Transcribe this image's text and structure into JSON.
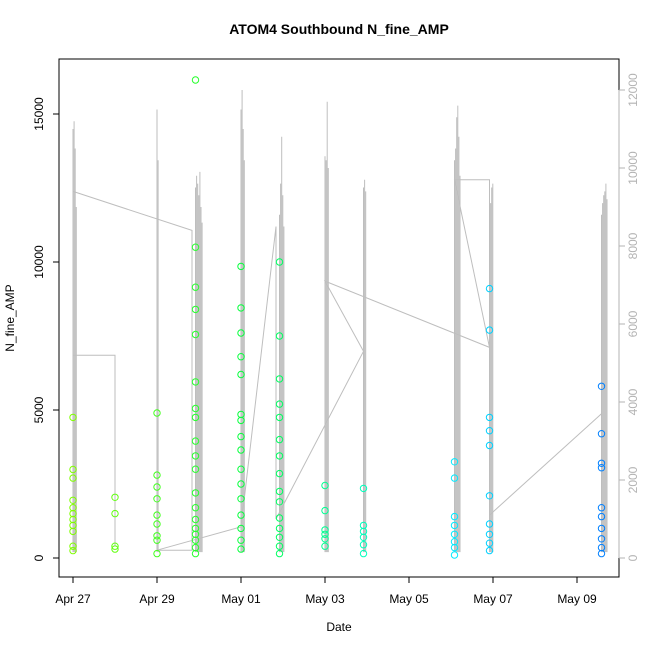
{
  "chart_data": {
    "type": "scatter",
    "title": "ATOM4 Southbound N_fine_AMP",
    "xlabel": "Date",
    "ylabel": "N_fine_AMP",
    "ylim": [
      0,
      16500
    ],
    "y_ticks": [
      0,
      5000,
      10000,
      15000
    ],
    "y2_ticks": [
      0,
      2000,
      4000,
      6000,
      8000,
      10000,
      12000
    ],
    "y2lim": [
      0,
      12500
    ],
    "x_ticks": [
      {
        "date": "2023-04-27",
        "label": "Apr 27"
      },
      {
        "date": "2023-04-29",
        "label": "Apr 29"
      },
      {
        "date": "2023-05-01",
        "label": "May 01"
      },
      {
        "date": "2023-05-03",
        "label": "May 03"
      },
      {
        "date": "2023-05-05",
        "label": "May 05"
      },
      {
        "date": "2023-05-07",
        "label": "May 07"
      },
      {
        "date": "2023-05-09",
        "label": "May 09"
      }
    ],
    "xlim": [
      "2023-04-26 16:00",
      "2023-05-10 00:00"
    ],
    "point_color_gradient": [
      "#80ff00",
      "#00ff40",
      "#00ffff",
      "#0080ff"
    ],
    "grey_line_color": "#bebebe",
    "grid": false,
    "legend": "none",
    "points": [
      {
        "t": "2023-04-27 00:00",
        "y": 4750
      },
      {
        "t": "2023-04-27 00:00",
        "y": 2990
      },
      {
        "t": "2023-04-27 00:00",
        "y": 2700
      },
      {
        "t": "2023-04-27 00:00",
        "y": 1950
      },
      {
        "t": "2023-04-27 00:00",
        "y": 1700
      },
      {
        "t": "2023-04-27 00:00",
        "y": 1500
      },
      {
        "t": "2023-04-27 00:00",
        "y": 1300
      },
      {
        "t": "2023-04-27 00:00",
        "y": 1100
      },
      {
        "t": "2023-04-27 00:00",
        "y": 900
      },
      {
        "t": "2023-04-27 00:00",
        "y": 400
      },
      {
        "t": "2023-04-27 00:00",
        "y": 250
      },
      {
        "t": "2023-04-28 00:00",
        "y": 2050
      },
      {
        "t": "2023-04-28 00:00",
        "y": 1500
      },
      {
        "t": "2023-04-28 00:00",
        "y": 400
      },
      {
        "t": "2023-04-28 00:00",
        "y": 300
      },
      {
        "t": "2023-04-29 00:00",
        "y": 4900
      },
      {
        "t": "2023-04-29 00:00",
        "y": 2800
      },
      {
        "t": "2023-04-29 00:00",
        "y": 2400
      },
      {
        "t": "2023-04-29 00:00",
        "y": 2000
      },
      {
        "t": "2023-04-29 00:00",
        "y": 1450
      },
      {
        "t": "2023-04-29 00:00",
        "y": 1150
      },
      {
        "t": "2023-04-29 00:00",
        "y": 750
      },
      {
        "t": "2023-04-29 00:00",
        "y": 600
      },
      {
        "t": "2023-04-29 00:00",
        "y": 150
      },
      {
        "t": "2023-04-29 22:00",
        "y": 16150
      },
      {
        "t": "2023-04-29 22:00",
        "y": 10500
      },
      {
        "t": "2023-04-29 22:00",
        "y": 9150
      },
      {
        "t": "2023-04-29 22:00",
        "y": 8400
      },
      {
        "t": "2023-04-29 22:00",
        "y": 7550
      },
      {
        "t": "2023-04-29 22:00",
        "y": 5950
      },
      {
        "t": "2023-04-29 22:00",
        "y": 5050
      },
      {
        "t": "2023-04-29 22:00",
        "y": 4750
      },
      {
        "t": "2023-04-29 22:00",
        "y": 3950
      },
      {
        "t": "2023-04-29 22:00",
        "y": 3450
      },
      {
        "t": "2023-04-29 22:00",
        "y": 3000
      },
      {
        "t": "2023-04-29 22:00",
        "y": 2200
      },
      {
        "t": "2023-04-29 22:00",
        "y": 1700
      },
      {
        "t": "2023-04-29 22:00",
        "y": 1300
      },
      {
        "t": "2023-04-29 22:00",
        "y": 1000
      },
      {
        "t": "2023-04-29 22:00",
        "y": 800
      },
      {
        "t": "2023-04-29 22:00",
        "y": 600
      },
      {
        "t": "2023-04-29 22:00",
        "y": 350
      },
      {
        "t": "2023-04-29 22:00",
        "y": 150
      },
      {
        "t": "2023-05-01 00:00",
        "y": 9850
      },
      {
        "t": "2023-05-01 00:00",
        "y": 8450
      },
      {
        "t": "2023-05-01 00:00",
        "y": 7600
      },
      {
        "t": "2023-05-01 00:00",
        "y": 6800
      },
      {
        "t": "2023-05-01 00:00",
        "y": 6200
      },
      {
        "t": "2023-05-01 00:00",
        "y": 4850
      },
      {
        "t": "2023-05-01 00:00",
        "y": 4650
      },
      {
        "t": "2023-05-01 00:00",
        "y": 4100
      },
      {
        "t": "2023-05-01 00:00",
        "y": 3650
      },
      {
        "t": "2023-05-01 00:00",
        "y": 3000
      },
      {
        "t": "2023-05-01 00:00",
        "y": 2500
      },
      {
        "t": "2023-05-01 00:00",
        "y": 2000
      },
      {
        "t": "2023-05-01 00:00",
        "y": 1450
      },
      {
        "t": "2023-05-01 00:00",
        "y": 1000
      },
      {
        "t": "2023-05-01 00:00",
        "y": 600
      },
      {
        "t": "2023-05-01 00:00",
        "y": 300
      },
      {
        "t": "2023-05-01 22:00",
        "y": 10000
      },
      {
        "t": "2023-05-01 22:00",
        "y": 7500
      },
      {
        "t": "2023-05-01 22:00",
        "y": 6050
      },
      {
        "t": "2023-05-01 22:00",
        "y": 5200
      },
      {
        "t": "2023-05-01 22:00",
        "y": 4750
      },
      {
        "t": "2023-05-01 22:00",
        "y": 4000
      },
      {
        "t": "2023-05-01 22:00",
        "y": 3450
      },
      {
        "t": "2023-05-01 22:00",
        "y": 2850
      },
      {
        "t": "2023-05-01 22:00",
        "y": 2250
      },
      {
        "t": "2023-05-01 22:00",
        "y": 1900
      },
      {
        "t": "2023-05-01 22:00",
        "y": 1350
      },
      {
        "t": "2023-05-01 22:00",
        "y": 1000
      },
      {
        "t": "2023-05-01 22:00",
        "y": 700
      },
      {
        "t": "2023-05-01 22:00",
        "y": 400
      },
      {
        "t": "2023-05-01 22:00",
        "y": 150
      },
      {
        "t": "2023-05-03 00:00",
        "y": 2450
      },
      {
        "t": "2023-05-03 00:00",
        "y": 1600
      },
      {
        "t": "2023-05-03 00:00",
        "y": 950
      },
      {
        "t": "2023-05-03 00:00",
        "y": 800
      },
      {
        "t": "2023-05-03 00:00",
        "y": 650
      },
      {
        "t": "2023-05-03 00:00",
        "y": 400
      },
      {
        "t": "2023-05-03 22:00",
        "y": 2350
      },
      {
        "t": "2023-05-03 22:00",
        "y": 1100
      },
      {
        "t": "2023-05-03 22:00",
        "y": 900
      },
      {
        "t": "2023-05-03 22:00",
        "y": 700
      },
      {
        "t": "2023-05-03 22:00",
        "y": 450
      },
      {
        "t": "2023-05-03 22:00",
        "y": 150
      },
      {
        "t": "2023-05-06 02:00",
        "y": 3250
      },
      {
        "t": "2023-05-06 02:00",
        "y": 2700
      },
      {
        "t": "2023-05-06 02:00",
        "y": 1400
      },
      {
        "t": "2023-05-06 02:00",
        "y": 1100
      },
      {
        "t": "2023-05-06 02:00",
        "y": 800
      },
      {
        "t": "2023-05-06 02:00",
        "y": 550
      },
      {
        "t": "2023-05-06 02:00",
        "y": 350
      },
      {
        "t": "2023-05-06 02:00",
        "y": 100
      },
      {
        "t": "2023-05-06 22:00",
        "y": 9100
      },
      {
        "t": "2023-05-06 22:00",
        "y": 7700
      },
      {
        "t": "2023-05-06 22:00",
        "y": 4750
      },
      {
        "t": "2023-05-06 22:00",
        "y": 4300
      },
      {
        "t": "2023-05-06 22:00",
        "y": 3800
      },
      {
        "t": "2023-05-06 22:00",
        "y": 2100
      },
      {
        "t": "2023-05-06 22:00",
        "y": 1150
      },
      {
        "t": "2023-05-06 22:00",
        "y": 800
      },
      {
        "t": "2023-05-06 22:00",
        "y": 500
      },
      {
        "t": "2023-05-06 22:00",
        "y": 250
      },
      {
        "t": "2023-05-09 14:00",
        "y": 5800
      },
      {
        "t": "2023-05-09 14:00",
        "y": 4200
      },
      {
        "t": "2023-05-09 14:00",
        "y": 3200
      },
      {
        "t": "2023-05-09 14:00",
        "y": 3050
      },
      {
        "t": "2023-05-09 14:00",
        "y": 1700
      },
      {
        "t": "2023-05-09 14:00",
        "y": 1400
      },
      {
        "t": "2023-05-09 14:00",
        "y": 1000
      },
      {
        "t": "2023-05-09 14:00",
        "y": 650
      },
      {
        "t": "2023-05-09 14:00",
        "y": 350
      },
      {
        "t": "2023-05-09 14:00",
        "y": 150
      }
    ],
    "spike_bursts": [
      {
        "t": "2023-04-27 00:00",
        "peaks_y2": [
          11000,
          11200,
          10500,
          9000
        ]
      },
      {
        "t": "2023-04-29 00:00",
        "peaks_y2": [
          11500,
          10200
        ]
      },
      {
        "t": "2023-04-29 22:00",
        "peaks_y2": [
          9500,
          9800,
          9600,
          9300,
          9900,
          9000,
          8600
        ]
      },
      {
        "t": "2023-05-01 00:00",
        "peaks_y2": [
          11500,
          12000,
          11000,
          10200
        ]
      },
      {
        "t": "2023-05-01 22:00",
        "peaks_y2": [
          8800,
          9600,
          10800,
          9300,
          8500
        ]
      },
      {
        "t": "2023-05-03 00:00",
        "peaks_y2": [
          10300,
          10200,
          11700,
          10000
        ]
      },
      {
        "t": "2023-05-03 22:00",
        "peaks_y2": [
          9500,
          9700,
          9400
        ]
      },
      {
        "t": "2023-05-06 02:00",
        "peaks_y2": [
          10200,
          10500,
          11300,
          11600,
          10800,
          9800
        ]
      },
      {
        "t": "2023-05-06 22:00",
        "peaks_y2": [
          9000,
          9100,
          9500,
          9600
        ]
      },
      {
        "t": "2023-05-09 14:00",
        "peaks_y2": [
          8800,
          9100,
          9300,
          9400,
          9600,
          9200
        ]
      }
    ],
    "connector_line_y2": [
      {
        "t": "2023-04-27 00:00",
        "y2": 5200
      },
      {
        "t": "2023-04-28 00:00",
        "y2": 5200
      },
      {
        "t": "2023-04-28 00:00",
        "y2": 300
      }
    ],
    "connector_line2_y2": [
      {
        "t": "2023-04-27 00:00",
        "y2": 9400
      },
      {
        "t": "2023-04-29 20:00",
        "y2": 8400
      },
      {
        "t": "2023-04-29 20:00",
        "y2": 200
      },
      {
        "t": "2023-04-29 00:00",
        "y2": 200
      },
      {
        "t": "2023-05-01 00:00",
        "y2": 800
      },
      {
        "t": "2023-05-01 20:00",
        "y2": 8500
      },
      {
        "t": "2023-05-01 20:00",
        "y2": 1000
      },
      {
        "t": "2023-05-03 22:00",
        "y2": 5300
      },
      {
        "t": "2023-05-03 00:00",
        "y2": 7100
      },
      {
        "t": "2023-05-06 22:00",
        "y2": 5400
      },
      {
        "t": "2023-05-06 02:00",
        "y2": 9700
      },
      {
        "t": "2023-05-06 22:00",
        "y2": 9700
      },
      {
        "t": "2023-05-06 22:00",
        "y2": 1100
      },
      {
        "t": "2023-05-09 14:00",
        "y2": 3700
      }
    ]
  }
}
